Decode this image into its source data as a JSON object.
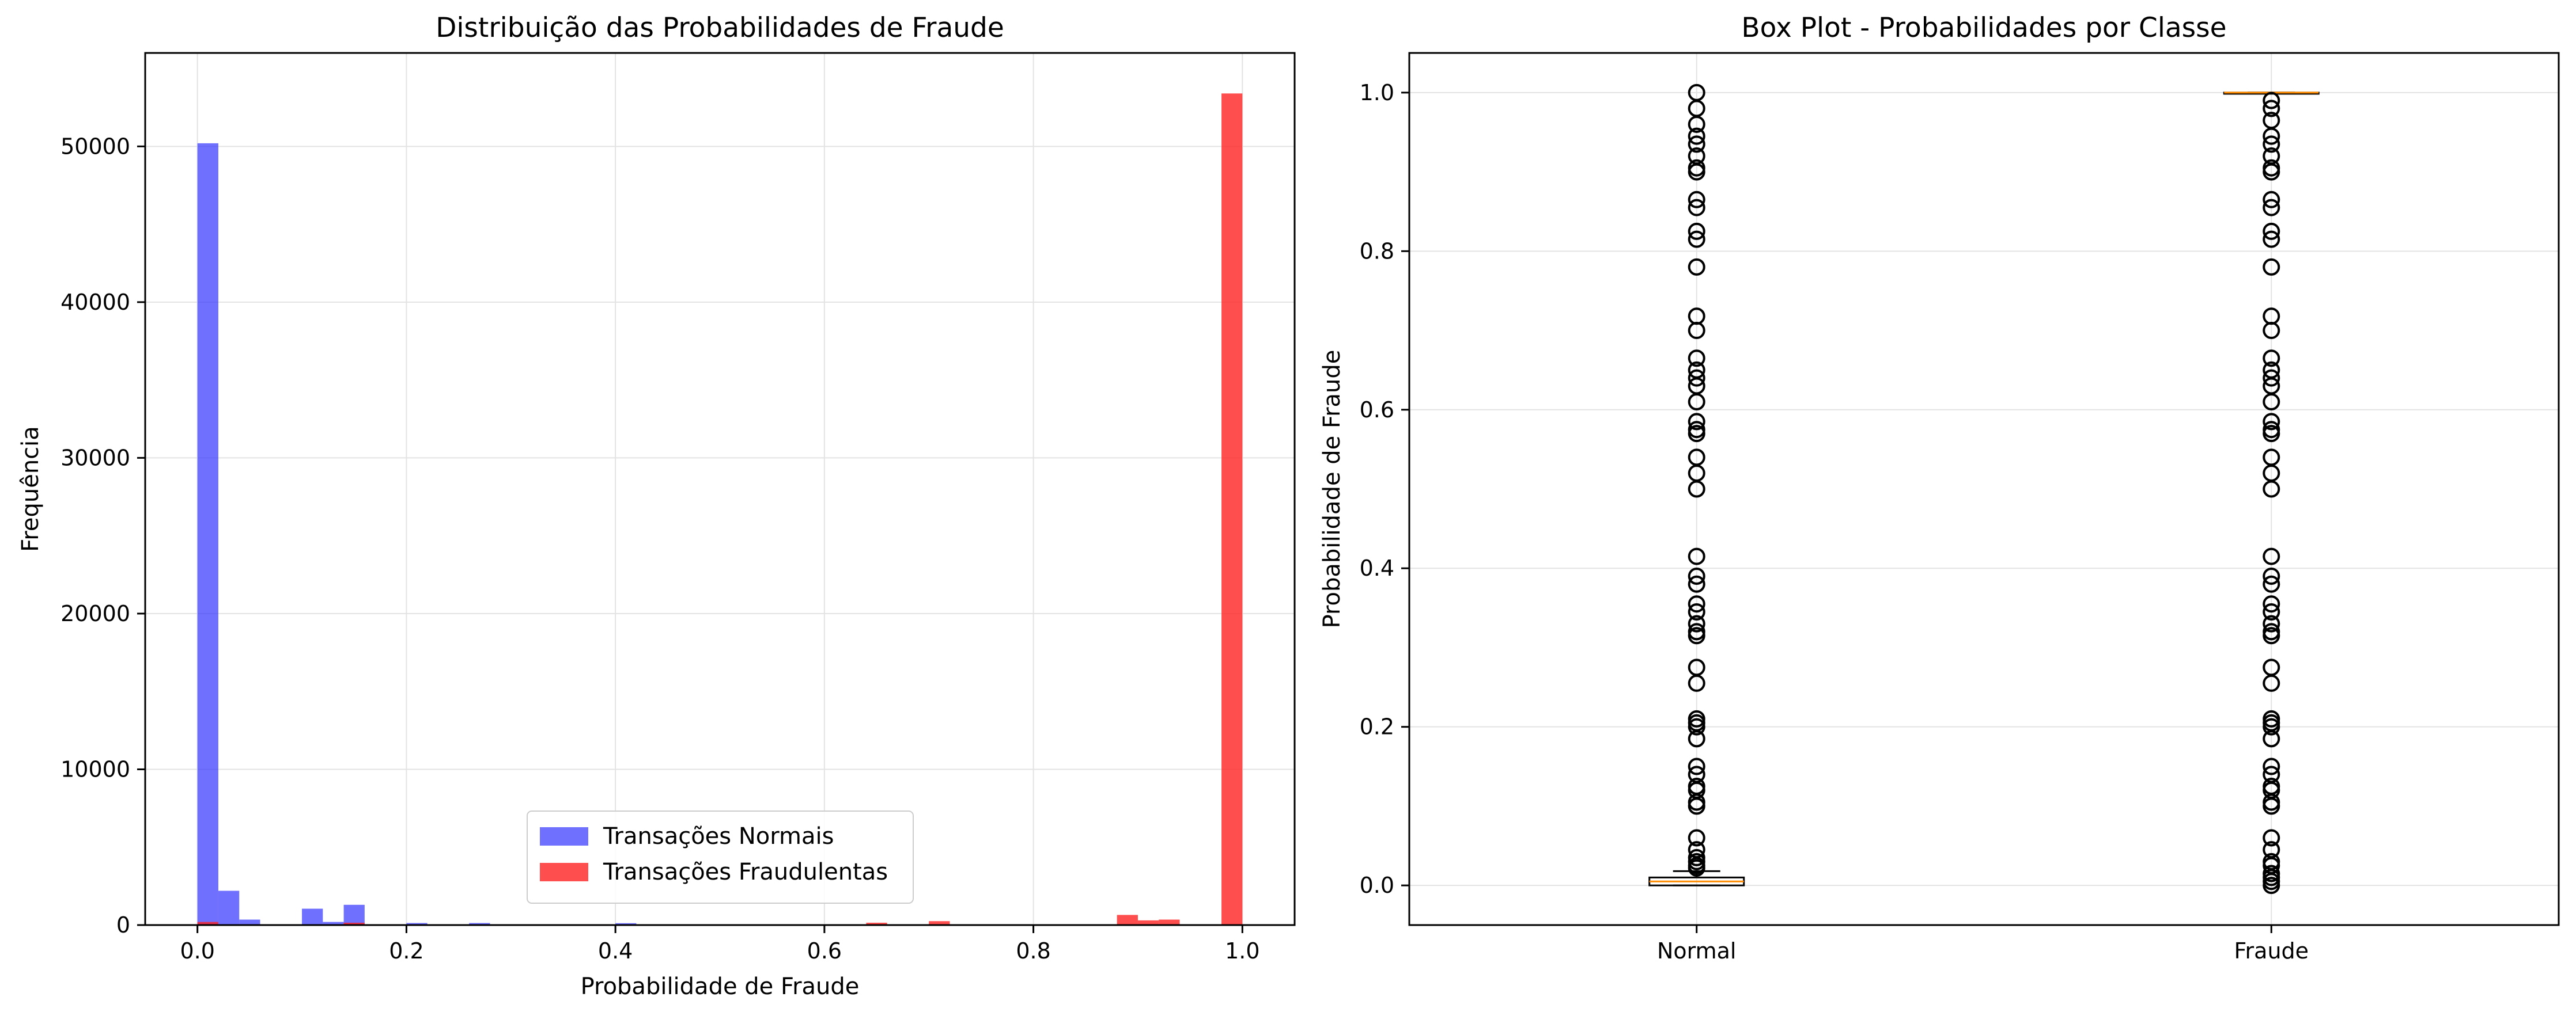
{
  "chart_data": [
    {
      "type": "histogram",
      "title": "Distribuição das Probabilidades de Fraude",
      "xlabel": "Probabilidade de Fraude",
      "ylabel": "Frequência",
      "xlim": [
        -0.05,
        1.05
      ],
      "ylim": [
        0,
        56000
      ],
      "xticks": [
        0.0,
        0.2,
        0.4,
        0.6,
        0.8,
        1.0
      ],
      "xtick_labels": [
        "0.0",
        "0.2",
        "0.4",
        "0.6",
        "0.8",
        "1.0"
      ],
      "yticks": [
        0,
        10000,
        20000,
        30000,
        40000,
        50000
      ],
      "ytick_labels": [
        "0",
        "10000",
        "20000",
        "30000",
        "40000",
        "50000"
      ],
      "grid": true,
      "bin_width": 0.02,
      "legend_position": "lower-center",
      "series": [
        {
          "name": "Transações Normais",
          "color": "#3333ff",
          "opacity": 0.7,
          "bins": [
            {
              "x": 0.0,
              "y": 50200
            },
            {
              "x": 0.02,
              "y": 2200
            },
            {
              "x": 0.04,
              "y": 350
            },
            {
              "x": 0.1,
              "y": 1050
            },
            {
              "x": 0.12,
              "y": 200
            },
            {
              "x": 0.14,
              "y": 1300
            },
            {
              "x": 0.2,
              "y": 130
            },
            {
              "x": 0.26,
              "y": 130
            },
            {
              "x": 0.4,
              "y": 120
            }
          ]
        },
        {
          "name": "Transações Fraudulentas",
          "color": "#ff2222",
          "opacity": 0.8,
          "bins": [
            {
              "x": 0.0,
              "y": 200
            },
            {
              "x": 0.14,
              "y": 150
            },
            {
              "x": 0.64,
              "y": 150
            },
            {
              "x": 0.7,
              "y": 250
            },
            {
              "x": 0.88,
              "y": 650
            },
            {
              "x": 0.9,
              "y": 300
            },
            {
              "x": 0.92,
              "y": 350
            },
            {
              "x": 0.98,
              "y": 53400
            }
          ]
        }
      ]
    },
    {
      "type": "box",
      "title": "Box Plot - Probabilidades por Classe",
      "xlabel": "",
      "ylabel": "Probabilidade de Fraude",
      "ylim": [
        -0.05,
        1.05
      ],
      "yticks": [
        0.0,
        0.2,
        0.4,
        0.6,
        0.8,
        1.0
      ],
      "ytick_labels": [
        "0.0",
        "0.2",
        "0.4",
        "0.6",
        "0.8",
        "1.0"
      ],
      "grid": true,
      "categories": [
        "Normal",
        "Fraude"
      ],
      "median_color": "#ff8c00",
      "boxes": [
        {
          "name": "Normal",
          "q1": 0.0,
          "median": 0.005,
          "q3": 0.01,
          "whisker_low": 0.0,
          "whisker_high": 0.018,
          "outliers": [
            1.0,
            0.98,
            0.96,
            0.945,
            0.935,
            0.92,
            0.905,
            0.9,
            0.865,
            0.855,
            0.825,
            0.815,
            0.78,
            0.718,
            0.7,
            0.665,
            0.65,
            0.64,
            0.63,
            0.61,
            0.585,
            0.575,
            0.57,
            0.54,
            0.52,
            0.5,
            0.415,
            0.39,
            0.38,
            0.355,
            0.345,
            0.33,
            0.32,
            0.315,
            0.275,
            0.255,
            0.21,
            0.205,
            0.2,
            0.185,
            0.15,
            0.14,
            0.125,
            0.12,
            0.105,
            0.1,
            0.06,
            0.045,
            0.035,
            0.03,
            0.025,
            0.022
          ]
        },
        {
          "name": "Fraude",
          "q1": 1.0,
          "median": 1.0,
          "q3": 1.0,
          "whisker_low": 1.0,
          "whisker_high": 1.0,
          "outliers": [
            0.99,
            0.98,
            0.965,
            0.945,
            0.935,
            0.92,
            0.905,
            0.9,
            0.865,
            0.855,
            0.825,
            0.815,
            0.78,
            0.718,
            0.7,
            0.665,
            0.65,
            0.64,
            0.63,
            0.61,
            0.585,
            0.575,
            0.57,
            0.54,
            0.52,
            0.5,
            0.415,
            0.39,
            0.38,
            0.355,
            0.345,
            0.33,
            0.32,
            0.315,
            0.275,
            0.255,
            0.21,
            0.205,
            0.2,
            0.185,
            0.15,
            0.14,
            0.125,
            0.12,
            0.105,
            0.1,
            0.06,
            0.045,
            0.03,
            0.025,
            0.015,
            0.01,
            0.005,
            0.0
          ]
        }
      ]
    }
  ]
}
